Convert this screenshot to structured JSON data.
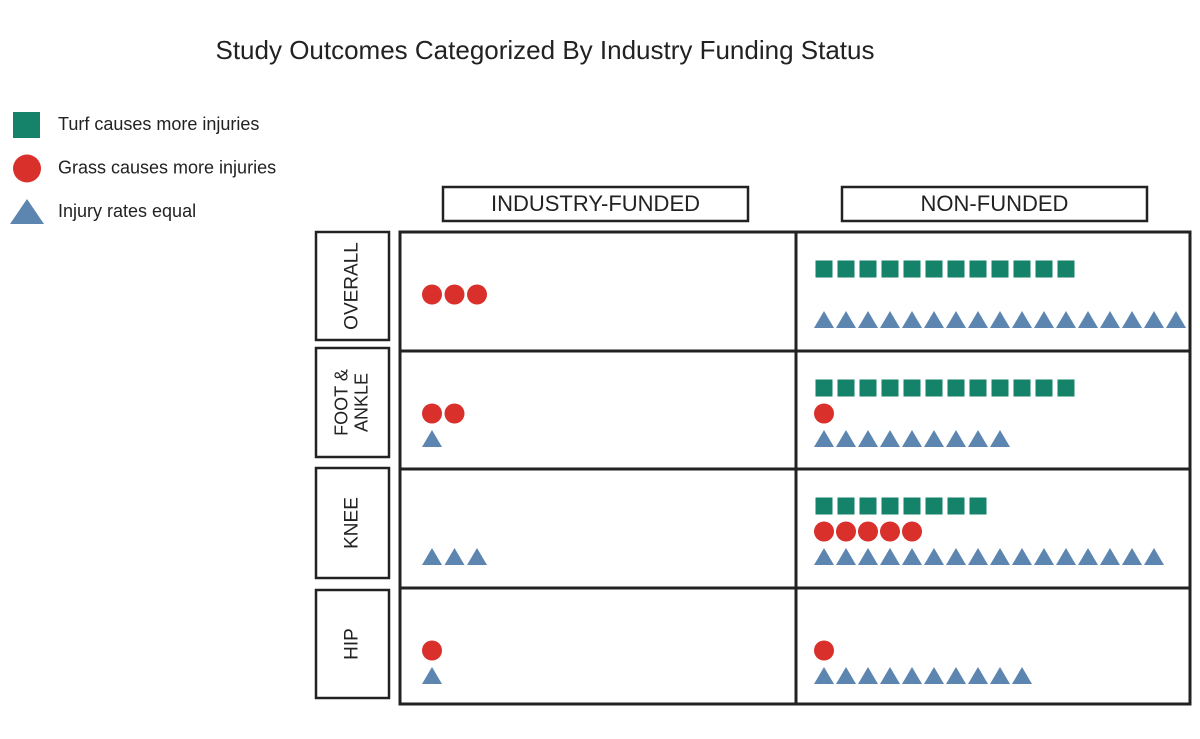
{
  "chart_data": {
    "type": "pictogram",
    "title": "Study Outcomes Categorized By Industry Funding Status",
    "columns": [
      "INDUSTRY-FUNDED",
      "NON-FUNDED"
    ],
    "rows": [
      "OVERALL",
      "FOOT & ANKLE",
      "KNEE",
      "HIP"
    ],
    "series": [
      {
        "name": "Turf causes more injuries",
        "color": "#15826a",
        "shape": "square",
        "values": [
          [
            0,
            12
          ],
          [
            0,
            12
          ],
          [
            0,
            8
          ],
          [
            0,
            0
          ]
        ]
      },
      {
        "name": "Grass causes more injuries",
        "color": "#d9302c",
        "shape": "circle",
        "values": [
          [
            3,
            0
          ],
          [
            2,
            1
          ],
          [
            0,
            5
          ],
          [
            1,
            1
          ]
        ]
      },
      {
        "name": "Injury rates equal",
        "color": "#5c86b0",
        "shape": "triangle",
        "values": [
          [
            0,
            17
          ],
          [
            1,
            9
          ],
          [
            3,
            16
          ],
          [
            1,
            10
          ]
        ]
      }
    ]
  }
}
